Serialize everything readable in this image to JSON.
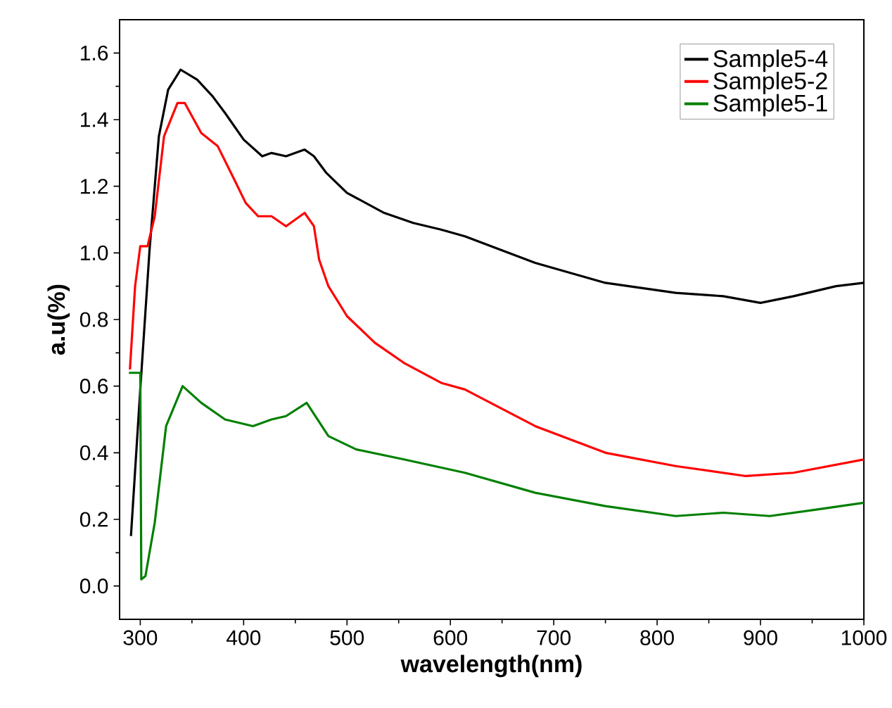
{
  "chart_data": {
    "type": "line",
    "xlabel": "wavelength(nm)",
    "ylabel": "a.u(%)",
    "xlim": [
      280,
      1000
    ],
    "ylim": [
      -0.1,
      1.7
    ],
    "xticks": [
      300,
      400,
      500,
      600,
      700,
      800,
      900,
      1000
    ],
    "yticks": [
      {
        "value": 0,
        "label": "0.0"
      },
      0.2,
      0.4,
      0.6,
      0.8,
      {
        "value": 1,
        "label": "1.0"
      },
      1.2,
      1.4,
      1.6
    ],
    "legend": "top right",
    "grid": false,
    "marker": "none",
    "line_style": "solid",
    "series": [
      {
        "name": "Sample5-4",
        "color": "#000000",
        "x": [
          291,
          300,
          309,
          318,
          327,
          339,
          355,
          370,
          382,
          400,
          418,
          427,
          441,
          459,
          468,
          480,
          500,
          536,
          564,
          591,
          614,
          682,
          750,
          818,
          864,
          900,
          932,
          973,
          1000
        ],
        "values": [
          0.15,
          0.59,
          1.01,
          1.35,
          1.49,
          1.55,
          1.52,
          1.47,
          1.42,
          1.34,
          1.29,
          1.3,
          1.29,
          1.31,
          1.29,
          1.24,
          1.18,
          1.12,
          1.09,
          1.07,
          1.05,
          0.97,
          0.91,
          0.88,
          0.87,
          0.85,
          0.87,
          0.9,
          0.91
        ]
      },
      {
        "name": "Sample5-2",
        "color": "#ff0000",
        "x": [
          290,
          295,
          300,
          307,
          314,
          323,
          336,
          343,
          359,
          375,
          391,
          402,
          414,
          427,
          441,
          459,
          468,
          473,
          482,
          500,
          527,
          555,
          591,
          614,
          682,
          750,
          818,
          886,
          932,
          1000
        ],
        "values": [
          0.65,
          0.9,
          1.02,
          1.02,
          1.11,
          1.35,
          1.45,
          1.45,
          1.36,
          1.32,
          1.22,
          1.15,
          1.11,
          1.11,
          1.08,
          1.12,
          1.08,
          0.98,
          0.9,
          0.81,
          0.73,
          0.67,
          0.61,
          0.59,
          0.48,
          0.4,
          0.36,
          0.33,
          0.34,
          0.38
        ]
      },
      {
        "name": "Sample5-1",
        "color": "#008000",
        "x": [
          289,
          300,
          301,
          305,
          314,
          325,
          341,
          359,
          382,
          409,
          427,
          441,
          461,
          482,
          509,
          555,
          614,
          682,
          750,
          818,
          864,
          909,
          955,
          1000
        ],
        "values": [
          0.64,
          0.64,
          0.02,
          0.03,
          0.19,
          0.48,
          0.6,
          0.55,
          0.5,
          0.48,
          0.5,
          0.51,
          0.55,
          0.45,
          0.41,
          0.38,
          0.34,
          0.28,
          0.24,
          0.21,
          0.22,
          0.21,
          0.23,
          0.25
        ]
      }
    ]
  }
}
